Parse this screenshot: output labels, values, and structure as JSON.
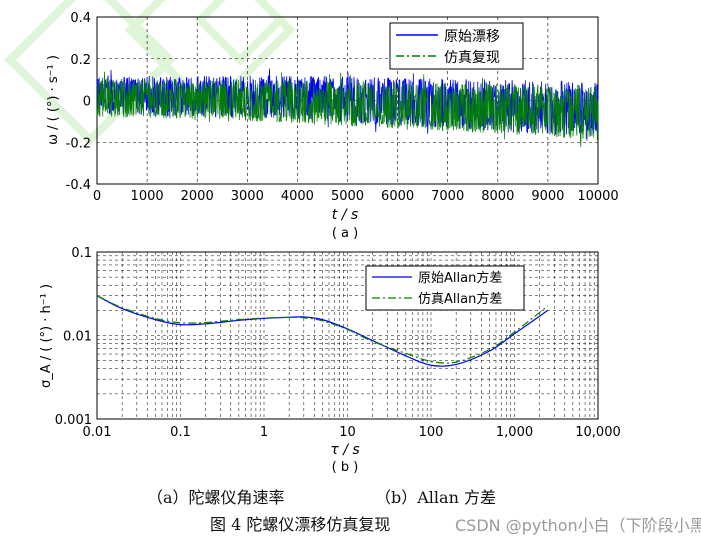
{
  "figure_caption": "图 4   陀螺仪漂移仿真复现",
  "subcaption_a": "（a）陀螺仪角速率",
  "subcaption_b": "（b）Allan 方差",
  "watermark": "CSDN @python小白（下阶段小黑）",
  "chart_data": [
    {
      "type": "line",
      "panel_label": "( a )",
      "xlabel": "t / s",
      "ylabel": "ω / ( (°) · s⁻¹ )",
      "xlim": [
        0,
        10000
      ],
      "ylim": [
        -0.4,
        0.4
      ],
      "x_ticks": [
        0,
        1000,
        2000,
        3000,
        4000,
        5000,
        6000,
        7000,
        8000,
        9000,
        10000
      ],
      "y_ticks": [
        -0.4,
        -0.2,
        0,
        0.2,
        0.4
      ],
      "x_tick_labels": [
        "0",
        "1000",
        "2000",
        "3000",
        "4000",
        "5000",
        "6000",
        "7000",
        "8000",
        "9000",
        "10000"
      ],
      "y_tick_labels": [
        "-0.4",
        "-0.2",
        "0",
        "0.2",
        "0.4"
      ],
      "grid": "dashed",
      "legend_position": "top-right",
      "series": [
        {
          "name": "原始漂移",
          "color": "#0000ff",
          "trend_x": [
            0,
            2000,
            4000,
            6000,
            8000,
            10000
          ],
          "trend_mean": [
            0.03,
            0.02,
            0.01,
            -0.01,
            -0.03,
            -0.05
          ],
          "band_upper": [
            0.12,
            0.12,
            0.12,
            0.11,
            0.1,
            0.09
          ],
          "band_lower": [
            -0.07,
            -0.08,
            -0.09,
            -0.12,
            -0.15,
            -0.18
          ]
        },
        {
          "name": "仿真复现",
          "color": "#008000",
          "trend_x": [
            0,
            2000,
            4000,
            6000,
            8000,
            10000
          ],
          "trend_mean": [
            0.02,
            0.01,
            0.0,
            -0.02,
            -0.04,
            -0.06
          ],
          "band_upper": [
            0.11,
            0.1,
            0.1,
            0.09,
            0.08,
            0.07
          ],
          "band_lower": [
            -0.08,
            -0.09,
            -0.11,
            -0.14,
            -0.16,
            -0.19
          ]
        }
      ]
    },
    {
      "type": "line",
      "panel_label": "( b )",
      "xlabel": "τ / s",
      "ylabel": "σ_A / ( (°) · h⁻¹ )",
      "xscale": "log",
      "yscale": "log",
      "xlim": [
        0.01,
        10000
      ],
      "ylim": [
        0.001,
        0.1
      ],
      "x_ticks": [
        0.01,
        0.1,
        1,
        10,
        100,
        1000,
        10000
      ],
      "y_ticks": [
        0.001,
        0.01,
        0.1
      ],
      "x_tick_labels": [
        "0.01",
        "0.1",
        "1",
        "10",
        "100",
        "1,000",
        "10,000"
      ],
      "y_tick_labels": [
        "0.001",
        "0.01",
        "0.1"
      ],
      "grid": "dashed",
      "legend_position": "top-right",
      "series": [
        {
          "name": "原始Allan方差",
          "color": "#0000ff",
          "x": [
            0.01,
            0.02,
            0.05,
            0.1,
            0.2,
            0.5,
            1,
            2,
            3,
            5,
            10,
            20,
            50,
            100,
            200,
            500,
            1000,
            2500
          ],
          "y": [
            0.03,
            0.021,
            0.0155,
            0.0135,
            0.0138,
            0.0152,
            0.016,
            0.0165,
            0.0167,
            0.0155,
            0.012,
            0.0087,
            0.0057,
            0.0044,
            0.0045,
            0.0065,
            0.0105,
            0.02
          ]
        },
        {
          "name": "仿真Allan方差",
          "color": "#008000",
          "x": [
            0.01,
            0.02,
            0.05,
            0.1,
            0.2,
            0.5,
            1,
            2,
            3,
            5,
            10,
            20,
            50,
            100,
            200,
            500,
            1000,
            2500
          ],
          "y": [
            0.03,
            0.0215,
            0.016,
            0.0142,
            0.0143,
            0.0155,
            0.0162,
            0.0165,
            0.0163,
            0.015,
            0.0118,
            0.0085,
            0.0061,
            0.0049,
            0.0048,
            0.0068,
            0.011,
            0.0225
          ]
        }
      ]
    }
  ]
}
